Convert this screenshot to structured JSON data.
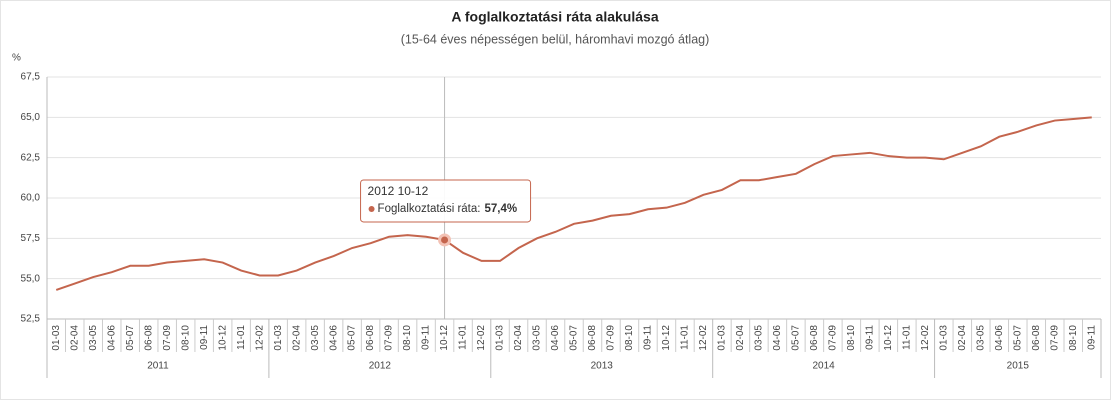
{
  "chart_data": {
    "type": "line",
    "title": "A foglalkoztatási ráta alakulása",
    "subtitle": "(15-64 éves népességen belül, háromhavi mozgó átlag)",
    "y_unit": "%",
    "groups": [
      {
        "label": "2011",
        "categories": [
          "01-03",
          "02-04",
          "03-05",
          "04-06",
          "05-07",
          "06-08",
          "07-09",
          "08-10",
          "09-11",
          "10-12",
          "11-01",
          "12-02"
        ]
      },
      {
        "label": "2012",
        "categories": [
          "01-03",
          "02-04",
          "03-05",
          "04-06",
          "05-07",
          "06-08",
          "07-09",
          "08-10",
          "09-11",
          "10-12",
          "11-01",
          "12-02"
        ]
      },
      {
        "label": "2013",
        "categories": [
          "01-03",
          "02-04",
          "03-05",
          "04-06",
          "05-07",
          "06-08",
          "07-09",
          "08-10",
          "09-11",
          "10-12",
          "11-01",
          "12-02"
        ]
      },
      {
        "label": "2014",
        "categories": [
          "01-03",
          "02-04",
          "03-05",
          "04-06",
          "05-07",
          "06-08",
          "07-09",
          "08-10",
          "09-11",
          "10-12",
          "11-01",
          "12-02"
        ]
      },
      {
        "label": "2015",
        "categories": [
          "01-03",
          "02-04",
          "03-05",
          "04-06",
          "05-07",
          "06-08",
          "07-09",
          "08-10",
          "09-11"
        ]
      }
    ],
    "series": [
      {
        "name": "Foglalkoztatási ráta",
        "color": "#c4654d",
        "values": [
          54.3,
          54.7,
          55.1,
          55.4,
          55.8,
          55.8,
          56.0,
          56.1,
          56.2,
          56.0,
          55.5,
          55.2,
          55.2,
          55.5,
          56.0,
          56.4,
          56.9,
          57.2,
          57.6,
          57.7,
          57.6,
          57.4,
          56.6,
          56.1,
          56.1,
          56.9,
          57.5,
          57.9,
          58.4,
          58.6,
          58.9,
          59.0,
          59.3,
          59.4,
          59.7,
          60.2,
          60.5,
          61.1,
          61.1,
          61.3,
          61.5,
          62.1,
          62.6,
          62.7,
          62.8,
          62.6,
          62.5,
          62.5,
          62.4,
          62.8,
          63.2,
          63.8,
          64.1,
          64.5,
          64.8,
          64.9,
          65.0
        ]
      }
    ],
    "ylim": [
      52.5,
      67.5
    ],
    "yticks": [
      {
        "value": 52.5,
        "label": "52,5"
      },
      {
        "value": 55,
        "label": "55,0"
      },
      {
        "value": 57.5,
        "label": "57,5"
      },
      {
        "value": 60,
        "label": "60,0"
      },
      {
        "value": 62.5,
        "label": "62,5"
      },
      {
        "value": 65,
        "label": "65,0"
      },
      {
        "value": 67.5,
        "label": "67,5"
      }
    ],
    "grid": true,
    "tooltip": {
      "title": "2012 10-12",
      "label": "Foglalkoztatási ráta:",
      "value": 57.4,
      "value_label": "57,4%"
    }
  }
}
